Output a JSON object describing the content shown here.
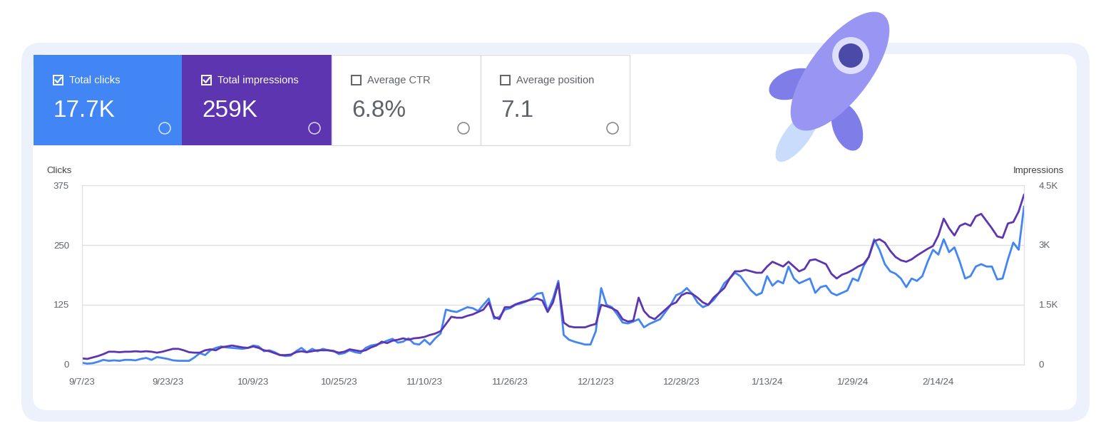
{
  "cards": [
    {
      "title": "Total clicks",
      "value": "17.7K",
      "checked": true,
      "color": "#4285f4"
    },
    {
      "title": "Total impressions",
      "value": "259K",
      "checked": true,
      "color": "#5e35b1"
    },
    {
      "title": "Average CTR",
      "value": "6.8%",
      "checked": false,
      "color": "#ffffff"
    },
    {
      "title": "Average position",
      "value": "7.1",
      "checked": false,
      "color": "#ffffff"
    }
  ],
  "chart_data": {
    "type": "line",
    "categories": [
      "9/7/23",
      null,
      null,
      null,
      null,
      null,
      null,
      null,
      null,
      null,
      null,
      null,
      null,
      null,
      null,
      null,
      "9/23/23",
      null,
      null,
      null,
      null,
      null,
      null,
      null,
      null,
      null,
      null,
      null,
      null,
      null,
      null,
      null,
      "10/9/23",
      null,
      null,
      null,
      null,
      null,
      null,
      null,
      null,
      null,
      null,
      null,
      null,
      null,
      null,
      null,
      "10/25/23",
      null,
      null,
      null,
      null,
      null,
      null,
      null,
      null,
      null,
      null,
      null,
      null,
      null,
      null,
      null,
      "11/10/23",
      null,
      null,
      null,
      null,
      null,
      null,
      null,
      null,
      null,
      null,
      null,
      null,
      null,
      null,
      null,
      "11/26/23",
      null,
      null,
      null,
      null,
      null,
      null,
      null,
      null,
      null,
      null,
      null,
      null,
      null,
      null,
      null,
      "12/12/23",
      null,
      null,
      null,
      null,
      null,
      null,
      null,
      null,
      null,
      null,
      null,
      null,
      null,
      null,
      null,
      "12/28/23",
      null,
      null,
      null,
      null,
      null,
      null,
      null,
      null,
      null,
      null,
      null,
      null,
      null,
      null,
      null,
      "1/13/24",
      null,
      null,
      null,
      null,
      null,
      null,
      null,
      null,
      null,
      null,
      null,
      null,
      null,
      null,
      null,
      "1/29/24",
      null,
      null,
      null,
      null,
      null,
      null,
      null,
      null,
      null,
      null,
      null,
      null,
      null,
      null,
      null,
      "2/14/24",
      null,
      null,
      null,
      null,
      null,
      null,
      null,
      null,
      null,
      null,
      null,
      null,
      null,
      null,
      null,
      null
    ],
    "series": [
      {
        "name": "Clicks",
        "color": "#4285f4",
        "values": [
          4,
          2,
          3,
          6,
          10,
          8,
          9,
          8,
          10,
          10,
          9,
          12,
          14,
          10,
          16,
          14,
          12,
          9,
          8,
          8,
          8,
          15,
          24,
          20,
          30,
          35,
          38,
          36,
          35,
          34,
          33,
          35,
          40,
          38,
          28,
          30,
          26,
          20,
          18,
          19,
          28,
          35,
          26,
          33,
          28,
          33,
          30,
          29,
          22,
          24,
          30,
          26,
          24,
          35,
          40,
          42,
          45,
          50,
          54,
          46,
          48,
          55,
          44,
          42,
          52,
          42,
          55,
          65,
          115,
          112,
          110,
          115,
          120,
          118,
          112,
          125,
          138,
          96,
          100,
          115,
          118,
          125,
          128,
          132,
          138,
          148,
          150,
          112,
          138,
          175,
          62,
          52,
          48,
          45,
          42,
          42,
          70,
          160,
          125,
          120,
          105,
          88,
          86,
          90,
          95,
          78,
          85,
          90,
          95,
          110,
          125,
          145,
          150,
          160,
          148,
          130,
          120,
          125,
          135,
          150,
          170,
          180,
          192,
          185,
          170,
          155,
          145,
          150,
          185,
          165,
          175,
          170,
          205,
          180,
          170,
          175,
          180,
          150,
          162,
          165,
          150,
          145,
          150,
          155,
          180,
          175,
          205,
          225,
          262,
          240,
          210,
          195,
          190,
          180,
          162,
          180,
          175,
          185,
          215,
          240,
          230,
          262,
          235,
          245,
          215,
          180,
          185,
          205,
          210,
          205,
          205,
          178,
          180,
          220,
          255,
          240,
          330
        ]
      },
      {
        "name": "Impressions",
        "color": "#5e35b1",
        "axis": "y2",
        "values": [
          156,
          144,
          180,
          216,
          264,
          324,
          324,
          312,
          324,
          324,
          336,
          324,
          336,
          324,
          300,
          324,
          360,
          396,
          396,
          360,
          312,
          300,
          300,
          360,
          384,
          360,
          432,
          456,
          480,
          456,
          432,
          420,
          456,
          420,
          360,
          336,
          288,
          240,
          240,
          252,
          312,
          336,
          312,
          336,
          360,
          360,
          360,
          336,
          300,
          324,
          384,
          360,
          336,
          360,
          432,
          480,
          576,
          540,
          600,
          624,
          660,
          624,
          660,
          672,
          696,
          744,
          780,
          840,
          1020,
          1200,
          1176,
          1176,
          1224,
          1260,
          1320,
          1380,
          1560,
          1200,
          1140,
          1440,
          1440,
          1512,
          1560,
          1596,
          1632,
          1656,
          1608,
          1320,
          1560,
          2040,
          1056,
          960,
          936,
          936,
          936,
          984,
          1020,
          1500,
          1464,
          1416,
          1344,
          1140,
          1080,
          1104,
          1680,
          1344,
          1200,
          1140,
          1260,
          1380,
          1500,
          1560,
          1740,
          1800,
          1776,
          1680,
          1560,
          1500,
          1680,
          1800,
          1920,
          2160,
          2340,
          2340,
          2376,
          2340,
          2304,
          2304,
          2460,
          2580,
          2520,
          2460,
          2580,
          2460,
          2340,
          2400,
          2616,
          2640,
          2580,
          2520,
          2280,
          2160,
          2256,
          2304,
          2376,
          2460,
          2520,
          2700,
          3096,
          3144,
          3060,
          2856,
          2700,
          2616,
          2580,
          2640,
          2736,
          2820,
          2904,
          2976,
          3240,
          3660,
          3420,
          3240,
          3480,
          3540,
          3480,
          3720,
          3780,
          3600,
          3420,
          3216,
          3180,
          3540,
          3576,
          3840,
          4260
        ]
      }
    ],
    "ylim": [
      0,
      375
    ],
    "yticks": [
      0,
      125,
      250,
      375
    ],
    "y2lim": [
      0,
      4500
    ],
    "y2ticks": [
      0,
      {
        "value": 1500,
        "label": "1.5K"
      },
      {
        "value": 3000,
        "label": "3K"
      },
      {
        "value": 4500,
        "label": "4.5K"
      }
    ],
    "grid": true
  }
}
